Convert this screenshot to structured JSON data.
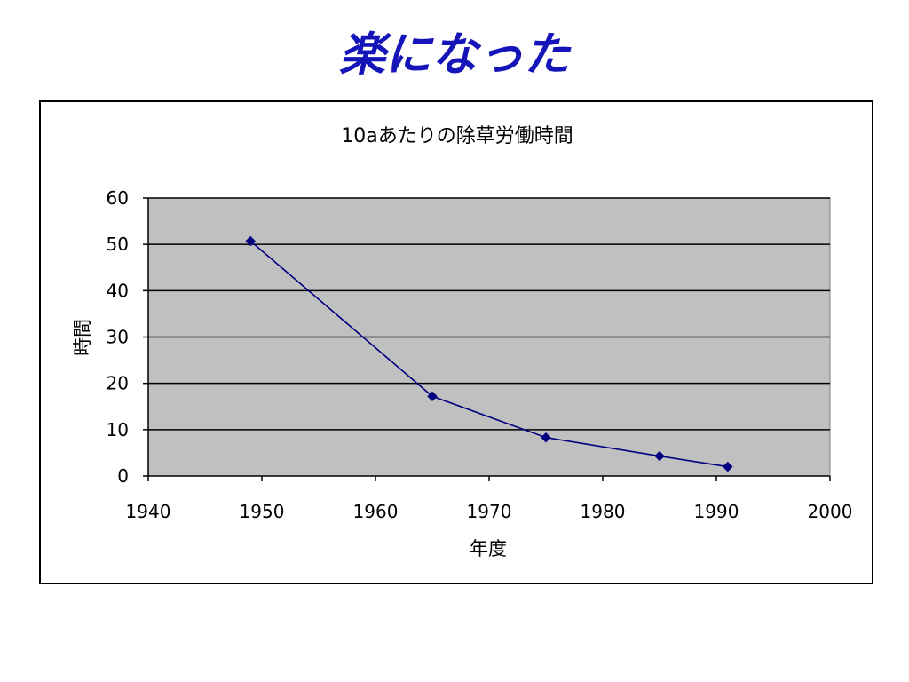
{
  "slide": {
    "title": "楽になった",
    "title_color": "#1414b8"
  },
  "chart_data": {
    "type": "line",
    "title": "10aあたりの除草労働時間",
    "xlabel": "年度",
    "ylabel": "時間",
    "xlim": [
      1940,
      2000
    ],
    "ylim": [
      0,
      60
    ],
    "x_ticks": [
      1940,
      1950,
      1960,
      1970,
      1980,
      1990,
      2000
    ],
    "y_ticks": [
      0,
      10,
      20,
      30,
      40,
      50,
      60
    ],
    "grid": "horizontal",
    "legend": "none",
    "series": [
      {
        "x": [
          1949,
          1965,
          1975,
          1985,
          1991
        ],
        "y": [
          50.7,
          17.2,
          8.3,
          4.3,
          2.0
        ],
        "marker": "diamond",
        "color": "#000080"
      }
    ],
    "plot_background": "#c0c0c0"
  }
}
